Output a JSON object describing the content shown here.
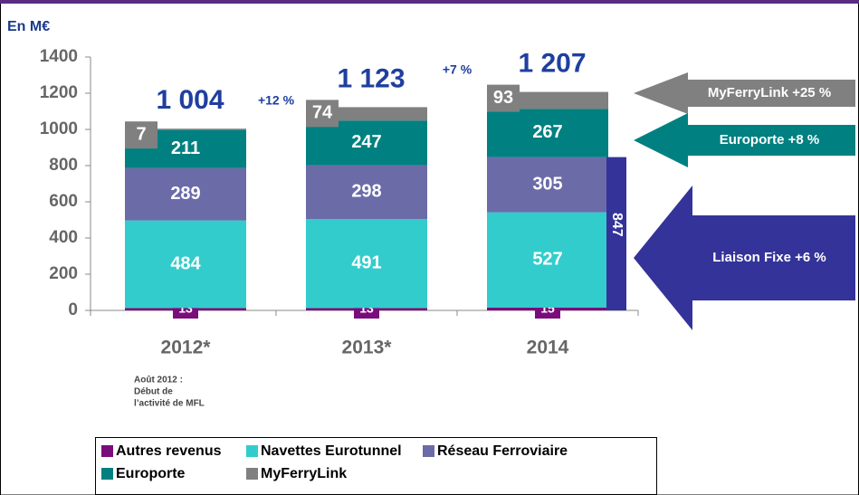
{
  "chart_data": {
    "type": "stacked_bar",
    "axis_label": "En M€",
    "categories": [
      "2012*",
      "2013*",
      "2014"
    ],
    "series": [
      {
        "name": "Autres revenus",
        "color": "#7b0c7b",
        "values": [
          13,
          13,
          15
        ]
      },
      {
        "name": "Navettes Eurotunnel",
        "color": "#33cccc",
        "values": [
          484,
          491,
          527
        ]
      },
      {
        "name": "Réseau Ferroviaire",
        "color": "#6b6ba8",
        "values": [
          289,
          298,
          305
        ]
      },
      {
        "name": "Europorte",
        "color": "#008080",
        "values": [
          211,
          247,
          267
        ]
      },
      {
        "name": "MyFerryLink",
        "color": "#808080",
        "values": [
          7,
          74,
          93
        ]
      }
    ],
    "totals": [
      {
        "value": 1004,
        "label": "1 004"
      },
      {
        "value": 1123,
        "label": "1 123"
      },
      {
        "value": 1207,
        "label": "1 207"
      }
    ],
    "growth_labels": [
      "+12 %",
      "+7 %"
    ],
    "bracket": {
      "value": 847,
      "color": "#333399"
    },
    "arrows": [
      "MyFerryLink +25 %",
      "Europorte +8 %",
      "Liaison Fixe +6 %"
    ],
    "footnote": [
      "Août 2012 :",
      "Début de",
      "l’activité de MFL"
    ],
    "ylim": [
      0,
      1400
    ],
    "yticks": [
      0,
      200,
      400,
      600,
      800,
      1000,
      1200,
      1400
    ]
  }
}
